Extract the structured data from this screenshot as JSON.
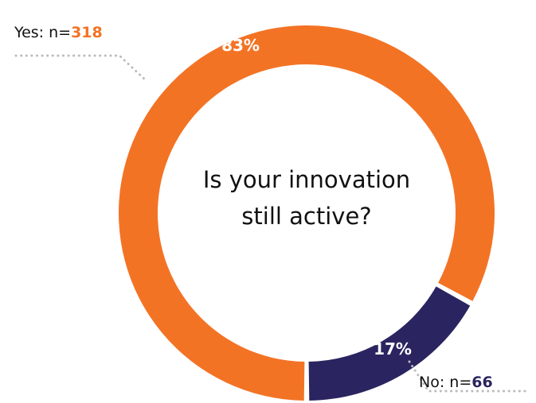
{
  "chart_data": {
    "type": "pie",
    "donut": true,
    "title": "Is your innovation still active?",
    "title_lines": [
      "Is your innovation",
      "still active?"
    ],
    "slices": [
      {
        "label": "Yes",
        "percent_label": "83%",
        "percent": 83,
        "n_prefix": "Yes: n=",
        "n": "318",
        "color": "#F37325"
      },
      {
        "label": "No",
        "percent_label": "17%",
        "percent": 17,
        "n_prefix": "No: n=",
        "n": "66",
        "color": "#2A2560"
      }
    ],
    "leader_color": "#BBBBBB"
  }
}
